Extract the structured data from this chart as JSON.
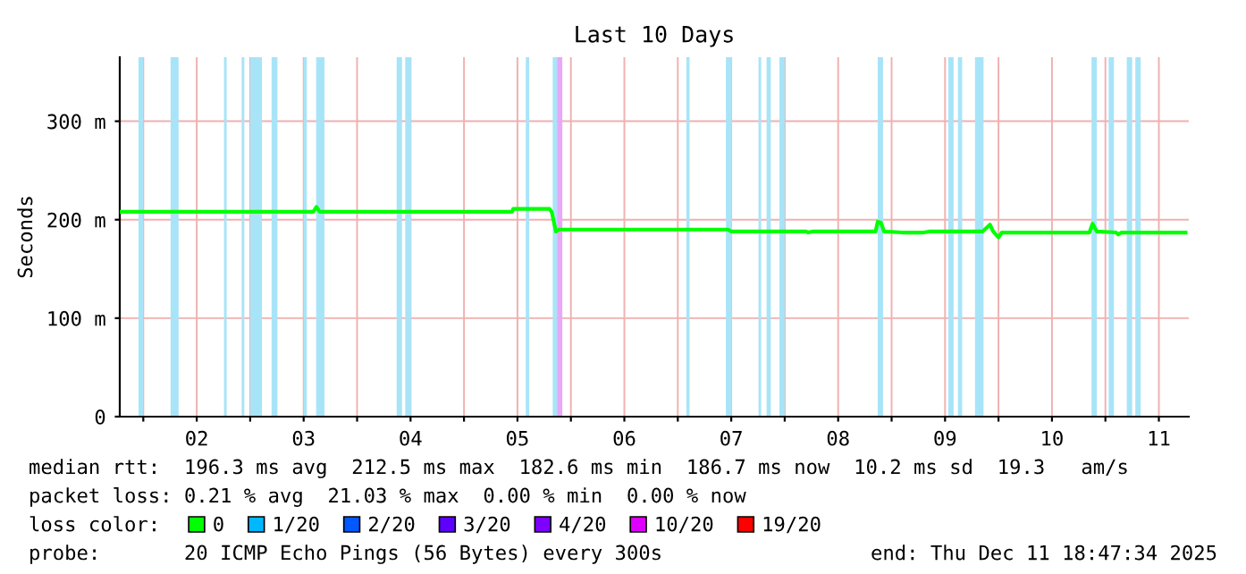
{
  "chart_data": {
    "type": "line",
    "title": "Last 10 Days",
    "ylabel": "Seconds",
    "xlim": [
      1.78,
      11.78
    ],
    "ylim": [
      0,
      365
    ],
    "xticks": [
      {
        "value": 2,
        "label": null
      },
      {
        "value": 2.5,
        "label": "02"
      },
      {
        "value": 3,
        "label": null
      },
      {
        "value": 3.5,
        "label": "03"
      },
      {
        "value": 4,
        "label": null
      },
      {
        "value": 4.5,
        "label": "04"
      },
      {
        "value": 5,
        "label": null
      },
      {
        "value": 5.5,
        "label": "05"
      },
      {
        "value": 6,
        "label": null
      },
      {
        "value": 6.5,
        "label": "06"
      },
      {
        "value": 7,
        "label": null
      },
      {
        "value": 7.5,
        "label": "07"
      },
      {
        "value": 8,
        "label": null
      },
      {
        "value": 8.5,
        "label": "08"
      },
      {
        "value": 9,
        "label": null
      },
      {
        "value": 9.5,
        "label": "09"
      },
      {
        "value": 10,
        "label": null
      },
      {
        "value": 10.5,
        "label": "10"
      },
      {
        "value": 11,
        "label": null
      },
      {
        "value": 11.5,
        "label": "11"
      }
    ],
    "yticks": [
      0,
      {
        "value": 100,
        "label": "100 m"
      },
      {
        "value": 200,
        "label": "200 m"
      },
      {
        "value": 300,
        "label": "300 m"
      }
    ],
    "grid": true,
    "legend": "bottom",
    "marker": "none",
    "line_style": "solid",
    "series": [
      {
        "name": "0",
        "color": "#00ff00",
        "x": [
          1.78,
          3.59,
          3.62,
          3.65,
          5.45,
          5.46,
          5.8,
          5.82,
          5.86,
          5.89,
          7.47,
          7.5,
          8.2,
          8.22,
          8.26,
          8.85,
          8.87,
          8.9,
          8.93,
          9.1,
          9.3,
          9.35,
          9.85,
          9.92,
          9.95,
          10.0,
          10.03,
          10.85,
          10.88,
          10.92,
          11.1,
          11.12,
          11.15,
          11.75
        ],
        "values": [
          208,
          208,
          213,
          208,
          208,
          211,
          211,
          208,
          188,
          190,
          190,
          188,
          188,
          187,
          188,
          188,
          198,
          197,
          188,
          187,
          187,
          188,
          188,
          195,
          188,
          182,
          187,
          187,
          196,
          188,
          187,
          185,
          187,
          187
        ]
      },
      {
        "name": "1/20",
        "color": "#00b8ff"
      },
      {
        "name": "2/20",
        "color": "#0059ff"
      },
      {
        "name": "3/20",
        "color": "#5e00ff"
      },
      {
        "name": "4/20",
        "color": "#7e00ff"
      },
      {
        "name": "10/20",
        "color": "#dd00ff"
      },
      {
        "name": "19/20",
        "color": "#ff0000"
      }
    ],
    "bands": [
      {
        "axis": "x",
        "from": 1.955,
        "to": 2.0,
        "color": "#a8e4f8"
      },
      {
        "axis": "x",
        "from": 2.255,
        "to": 2.33,
        "color": "#a8e4f8"
      },
      {
        "axis": "x",
        "from": 2.755,
        "to": 2.78,
        "color": "#a8e4f8"
      },
      {
        "axis": "x",
        "from": 2.92,
        "to": 2.945,
        "color": "#a8e4f8"
      },
      {
        "axis": "x",
        "from": 3.0,
        "to": 3.11,
        "color": "#a8e4f8"
      },
      {
        "axis": "x",
        "from": 3.2,
        "to": 3.255,
        "color": "#a8e4f8"
      },
      {
        "axis": "x",
        "from": 3.5,
        "to": 3.53,
        "color": "#a8e4f8"
      },
      {
        "axis": "x",
        "from": 3.617,
        "to": 3.695,
        "color": "#a8e4f8"
      },
      {
        "axis": "x",
        "from": 4.37,
        "to": 4.42,
        "color": "#a8e4f8"
      },
      {
        "axis": "x",
        "from": 4.45,
        "to": 4.505,
        "color": "#a8e4f8"
      },
      {
        "axis": "x",
        "from": 5.578,
        "to": 5.61,
        "color": "#a8e4f8"
      },
      {
        "axis": "x",
        "from": 5.83,
        "to": 5.87,
        "color": "#a8e4f8"
      },
      {
        "axis": "x",
        "from": 5.87,
        "to": 5.92,
        "color": "#e8a8f8"
      },
      {
        "axis": "x",
        "from": 7.08,
        "to": 7.11,
        "color": "#a8e4f8"
      },
      {
        "axis": "x",
        "from": 7.45,
        "to": 7.505,
        "color": "#a8e4f8"
      },
      {
        "axis": "x",
        "from": 7.755,
        "to": 7.78,
        "color": "#a8e4f8"
      },
      {
        "axis": "x",
        "from": 7.83,
        "to": 7.87,
        "color": "#a8e4f8"
      },
      {
        "axis": "x",
        "from": 7.95,
        "to": 8.0,
        "color": "#a8e4f8"
      },
      {
        "axis": "x",
        "from": 8.87,
        "to": 8.92,
        "color": "#a8e4f8"
      },
      {
        "axis": "x",
        "from": 9.53,
        "to": 9.58,
        "color": "#a8e4f8"
      },
      {
        "axis": "x",
        "from": 9.62,
        "to": 9.66,
        "color": "#a8e4f8"
      },
      {
        "axis": "x",
        "from": 9.78,
        "to": 9.86,
        "color": "#a8e4f8"
      },
      {
        "axis": "x",
        "from": 10.87,
        "to": 10.92,
        "color": "#a8e4f8"
      },
      {
        "axis": "x",
        "from": 11.03,
        "to": 11.08,
        "color": "#a8e4f8"
      },
      {
        "axis": "x",
        "from": 11.2,
        "to": 11.25,
        "color": "#a8e4f8"
      },
      {
        "axis": "x",
        "from": 11.28,
        "to": 11.33,
        "color": "#a8e4f8"
      }
    ],
    "annotations": [
      "median rtt:  196.3 ms avg  212.5 ms max  182.6 ms min  186.7 ms now  10.2 ms sd  19.3   am/s",
      "packet loss: 0.21 % avg  21.03 % max  0.00 % min  0.00 % now",
      "loss color:",
      "probe:       20 ICMP Echo Pings (56 Bytes) every 300s",
      "end: Thu Dec 11 18:47:34 2025"
    ]
  }
}
